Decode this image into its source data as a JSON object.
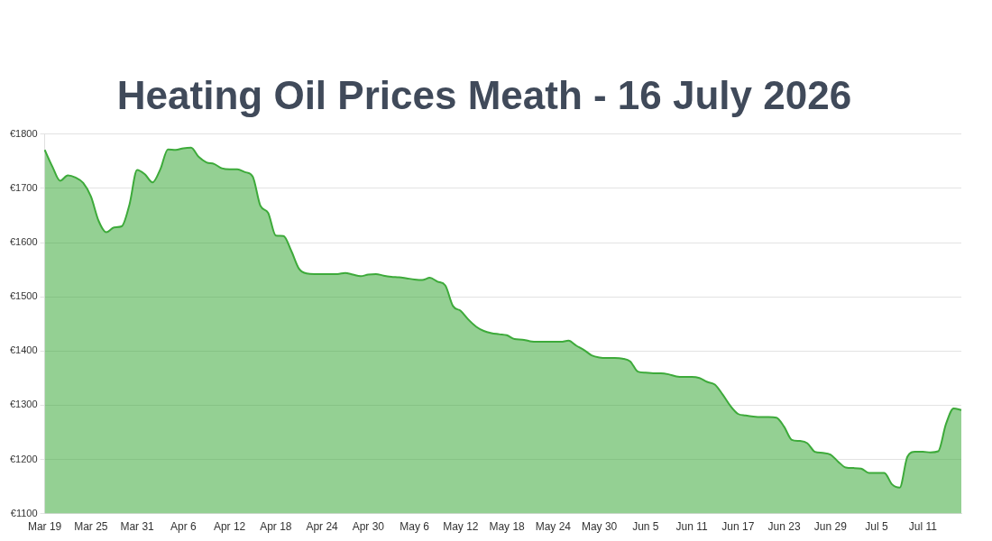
{
  "chart_data": {
    "type": "area",
    "title": "Heating Oil Prices Meath - 16 July 2026",
    "categories": [
      "Mar 19",
      null,
      null,
      null,
      null,
      null,
      "Mar 25",
      null,
      null,
      null,
      null,
      null,
      "Mar 31",
      null,
      null,
      null,
      null,
      null,
      "Apr 6",
      null,
      null,
      null,
      null,
      null,
      "Apr 12",
      null,
      null,
      null,
      null,
      null,
      "Apr 18",
      null,
      null,
      null,
      null,
      null,
      "Apr 24",
      null,
      null,
      null,
      null,
      null,
      "Apr 30",
      null,
      null,
      null,
      null,
      null,
      "May 6",
      null,
      null,
      null,
      null,
      null,
      "May 12",
      null,
      null,
      null,
      null,
      null,
      "May 18",
      null,
      null,
      null,
      null,
      null,
      "May 24",
      null,
      null,
      null,
      null,
      null,
      "May 30",
      null,
      null,
      null,
      null,
      null,
      "Jun 5",
      null,
      null,
      null,
      null,
      null,
      "Jun 11",
      null,
      null,
      null,
      null,
      null,
      "Jun 17",
      null,
      null,
      null,
      null,
      null,
      "Jun 23",
      null,
      null,
      null,
      null,
      null,
      "Jun 29",
      null,
      null,
      null,
      null,
      null,
      "Jul 5",
      null,
      null,
      null,
      null,
      null,
      "Jul 11",
      null,
      null,
      null,
      null,
      null
    ],
    "series": [
      {
        "color": "#3daa3a",
        "values": [
          1771,
          1740,
          1714,
          1724,
          1720,
          1710,
          1685,
          1640,
          1619,
          1628,
          1630,
          1670,
          1734,
          1726,
          1711,
          1735,
          1772,
          1771,
          1774,
          1775,
          1758,
          1748,
          1745,
          1737,
          1735,
          1735,
          1730,
          1722,
          1668,
          1655,
          1613,
          1612,
          1585,
          1552,
          1543,
          1542,
          1542,
          1542,
          1542,
          1544,
          1541,
          1538,
          1541,
          1542,
          1539,
          1537,
          1536,
          1534,
          1532,
          1531,
          1535,
          1528,
          1521,
          1483,
          1474,
          1458,
          1445,
          1437,
          1433,
          1431,
          1429,
          1422,
          1421,
          1418,
          1417,
          1417,
          1417,
          1417,
          1419,
          1410,
          1402,
          1392,
          1388,
          1387,
          1387,
          1386,
          1381,
          1362,
          1360,
          1359,
          1359,
          1357,
          1353,
          1352,
          1352,
          1350,
          1343,
          1338,
          1320,
          1299,
          1284,
          1281,
          1279,
          1278,
          1278,
          1277,
          1260,
          1236,
          1234,
          1230,
          1214,
          1212,
          1209,
          1196,
          1185,
          1184,
          1183,
          1175,
          1175,
          1175,
          1154,
          1148,
          1205,
          1214,
          1214,
          1213,
          1215,
          1265,
          1294,
          1291
        ]
      }
    ],
    "ylim": [
      1100,
      1800
    ],
    "yticks": [
      {
        "value": 1100,
        "label": "€1100"
      },
      {
        "value": 1200,
        "label": "€1200"
      },
      {
        "value": 1300,
        "label": "€1300"
      },
      {
        "value": 1400,
        "label": "€1400"
      },
      {
        "value": 1500,
        "label": "€1500"
      },
      {
        "value": 1600,
        "label": "€1600"
      },
      {
        "value": 1700,
        "label": "€1700"
      },
      {
        "value": 1800,
        "label": "€1800"
      }
    ],
    "grid": "y",
    "legend": false,
    "marker": "none"
  }
}
